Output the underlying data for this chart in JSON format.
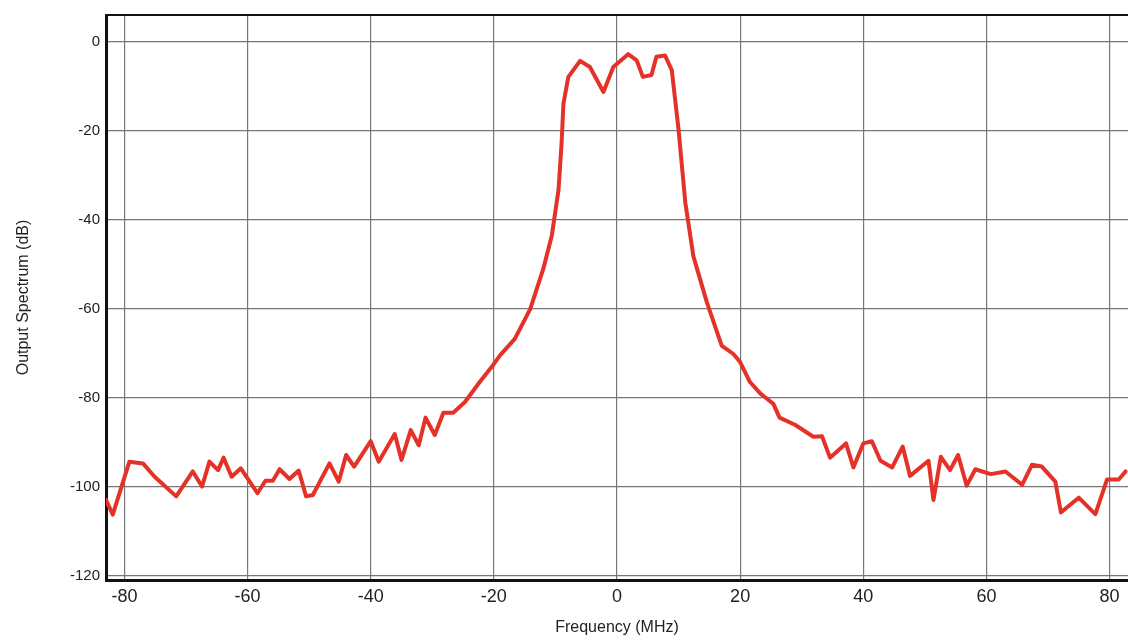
{
  "chart_data": {
    "type": "line",
    "xlabel": "Frequency (MHz)",
    "ylabel": "Output Spectrum (dB)",
    "xlim": [
      -83,
      83
    ],
    "ylim": [
      -121,
      6
    ],
    "xticks": [
      -80,
      -60,
      -40,
      -20,
      0,
      20,
      40,
      60,
      80
    ],
    "yticks": [
      -120,
      -100,
      -80,
      -60,
      -40,
      -20,
      0
    ],
    "grid": true,
    "marker": "none",
    "series": [
      {
        "color": "#e53228",
        "x": [
          -83,
          -81.9,
          -79.2,
          -77,
          -75.1,
          -71.6,
          -68.9,
          -67.4,
          -66.2,
          -64.8,
          -63.9,
          -62.6,
          -61.1,
          -58.4,
          -57.1,
          -55.9,
          -54.8,
          -53.2,
          -51.7,
          -50.5,
          -49.4,
          -46.7,
          -45.2,
          -44,
          -42.7,
          -40,
          -38.7,
          -36.1,
          -35,
          -33.5,
          -32.2,
          -31.1,
          -29.6,
          -28.2,
          -26.6,
          -24.7,
          -22.3,
          -20.4,
          -19,
          -16.6,
          -14.1,
          -12,
          -10.6,
          -9.5,
          -9,
          -8.7,
          -7.9,
          -6,
          -4.4,
          -2.2,
          -0.6,
          1.8,
          3.2,
          4.2,
          5.6,
          6.4,
          7.8,
          8.9,
          10,
          11.1,
          12.4,
          14.6,
          17,
          18.9,
          20,
          21.6,
          23.3,
          25.4,
          26.4,
          28.9,
          31.9,
          33.3,
          34.6,
          37.2,
          38.4,
          40,
          41.4,
          42.8,
          44.7,
          46.4,
          47.6,
          50.6,
          51.4,
          52.6,
          54.1,
          55.4,
          56.8,
          58.2,
          60.7,
          63.1,
          65.8,
          67.4,
          69,
          71.2,
          72.1,
          75,
          77.7,
          79.6,
          81.5,
          82.6
        ],
        "values": [
          -103,
          -106.3,
          -94.4,
          -94.8,
          -97.8,
          -102.2,
          -96.6,
          -100,
          -94.4,
          -96.3,
          -93.5,
          -97.8,
          -95.9,
          -101.5,
          -98.7,
          -98.7,
          -96.1,
          -98.3,
          -96.4,
          -102.2,
          -101.9,
          -94.8,
          -98.9,
          -92.9,
          -95.5,
          -89.8,
          -94.4,
          -88.2,
          -94,
          -87.3,
          -90.7,
          -84.5,
          -88.4,
          -83.4,
          -83.4,
          -81,
          -76.5,
          -73.2,
          -70.5,
          -66.8,
          -60.1,
          -51.2,
          -43.7,
          -33.3,
          -22.8,
          -13.9,
          -7.9,
          -4.3,
          -5.7,
          -11.3,
          -5.7,
          -2.8,
          -4.2,
          -7.9,
          -7.5,
          -3.4,
          -3.1,
          -6.4,
          -19.8,
          -36.2,
          -48.2,
          -58.6,
          -68.3,
          -70.2,
          -72,
          -76.5,
          -79.1,
          -81.4,
          -84.5,
          -86.1,
          -88.8,
          -88.7,
          -93.5,
          -90.3,
          -95.7,
          -90.3,
          -89.8,
          -94.2,
          -95.7,
          -91,
          -97.6,
          -94.2,
          -103,
          -93.3,
          -96.3,
          -92.9,
          -99.8,
          -96.1,
          -97.2,
          -96.6,
          -99.6,
          -95.1,
          -95.5,
          -98.9,
          -105.8,
          -102.5,
          -106.2,
          -98.4,
          -98.4,
          -96.6
        ]
      }
    ]
  }
}
